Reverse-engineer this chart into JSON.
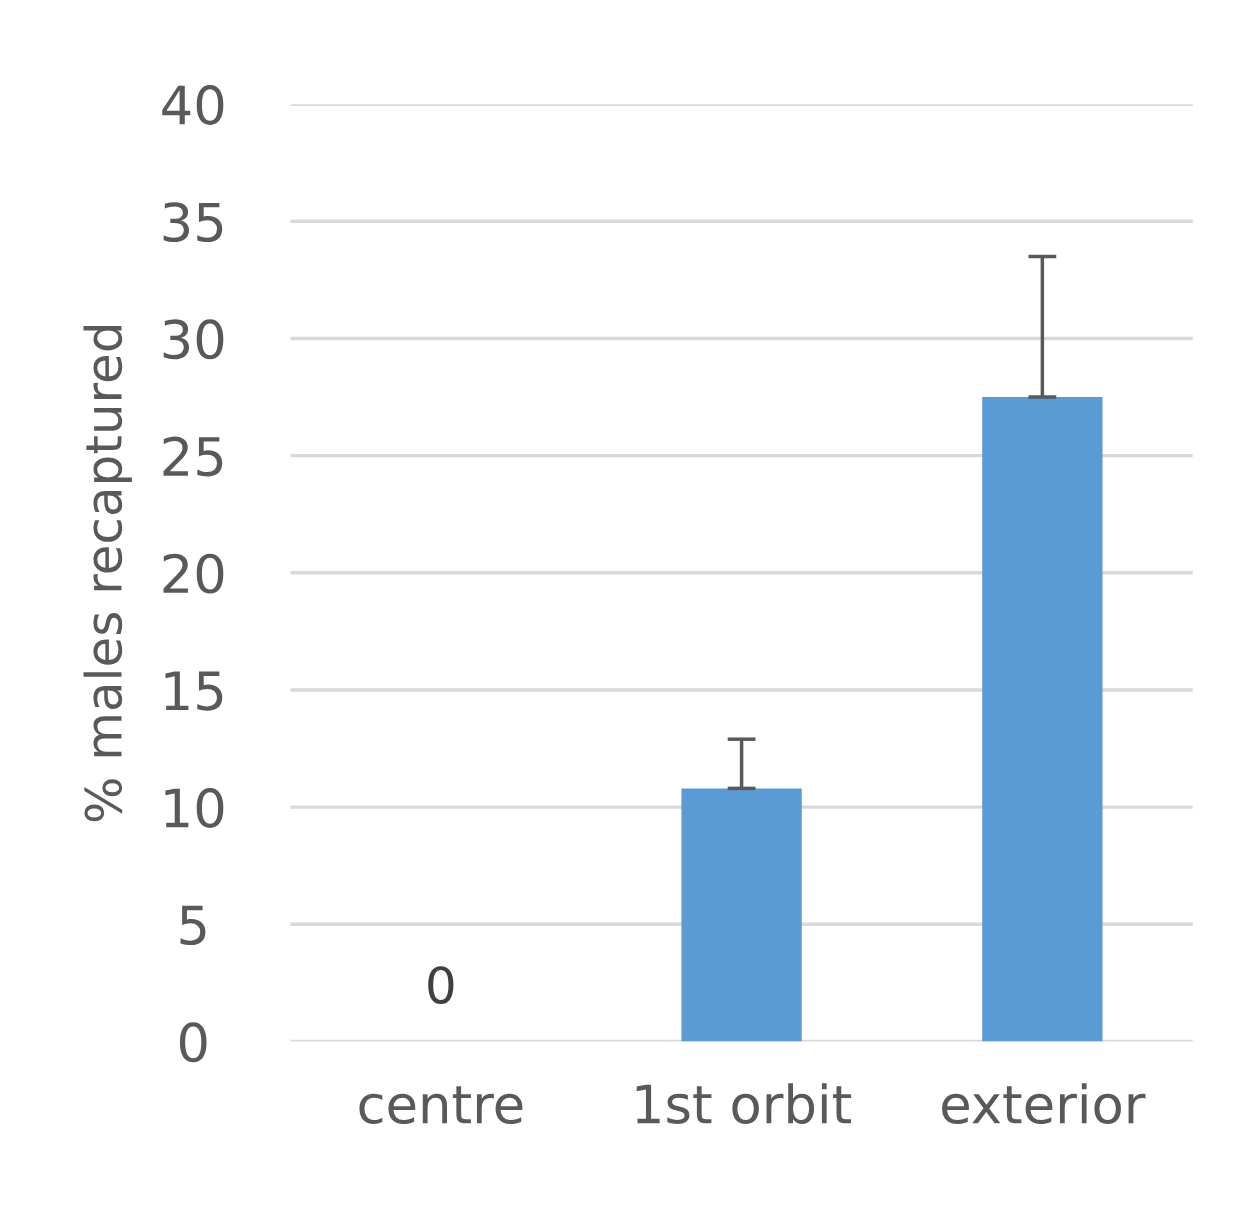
{
  "chart_data": {
    "type": "bar",
    "ylabel": "% males recaptured",
    "categories": [
      "centre",
      "1st orbit",
      "exterior"
    ],
    "values": [
      0,
      10.8,
      27.5
    ],
    "color": "#5b9bd5",
    "errors": [
      null,
      [
        10.8,
        12.9
      ],
      [
        27.5,
        33.5
      ]
    ],
    "value_labels": [
      "0",
      null,
      null
    ],
    "ylim": [
      0,
      40
    ],
    "yticks": [
      0,
      5,
      10,
      15,
      20,
      25,
      30,
      35,
      40
    ],
    "grid": "y"
  }
}
